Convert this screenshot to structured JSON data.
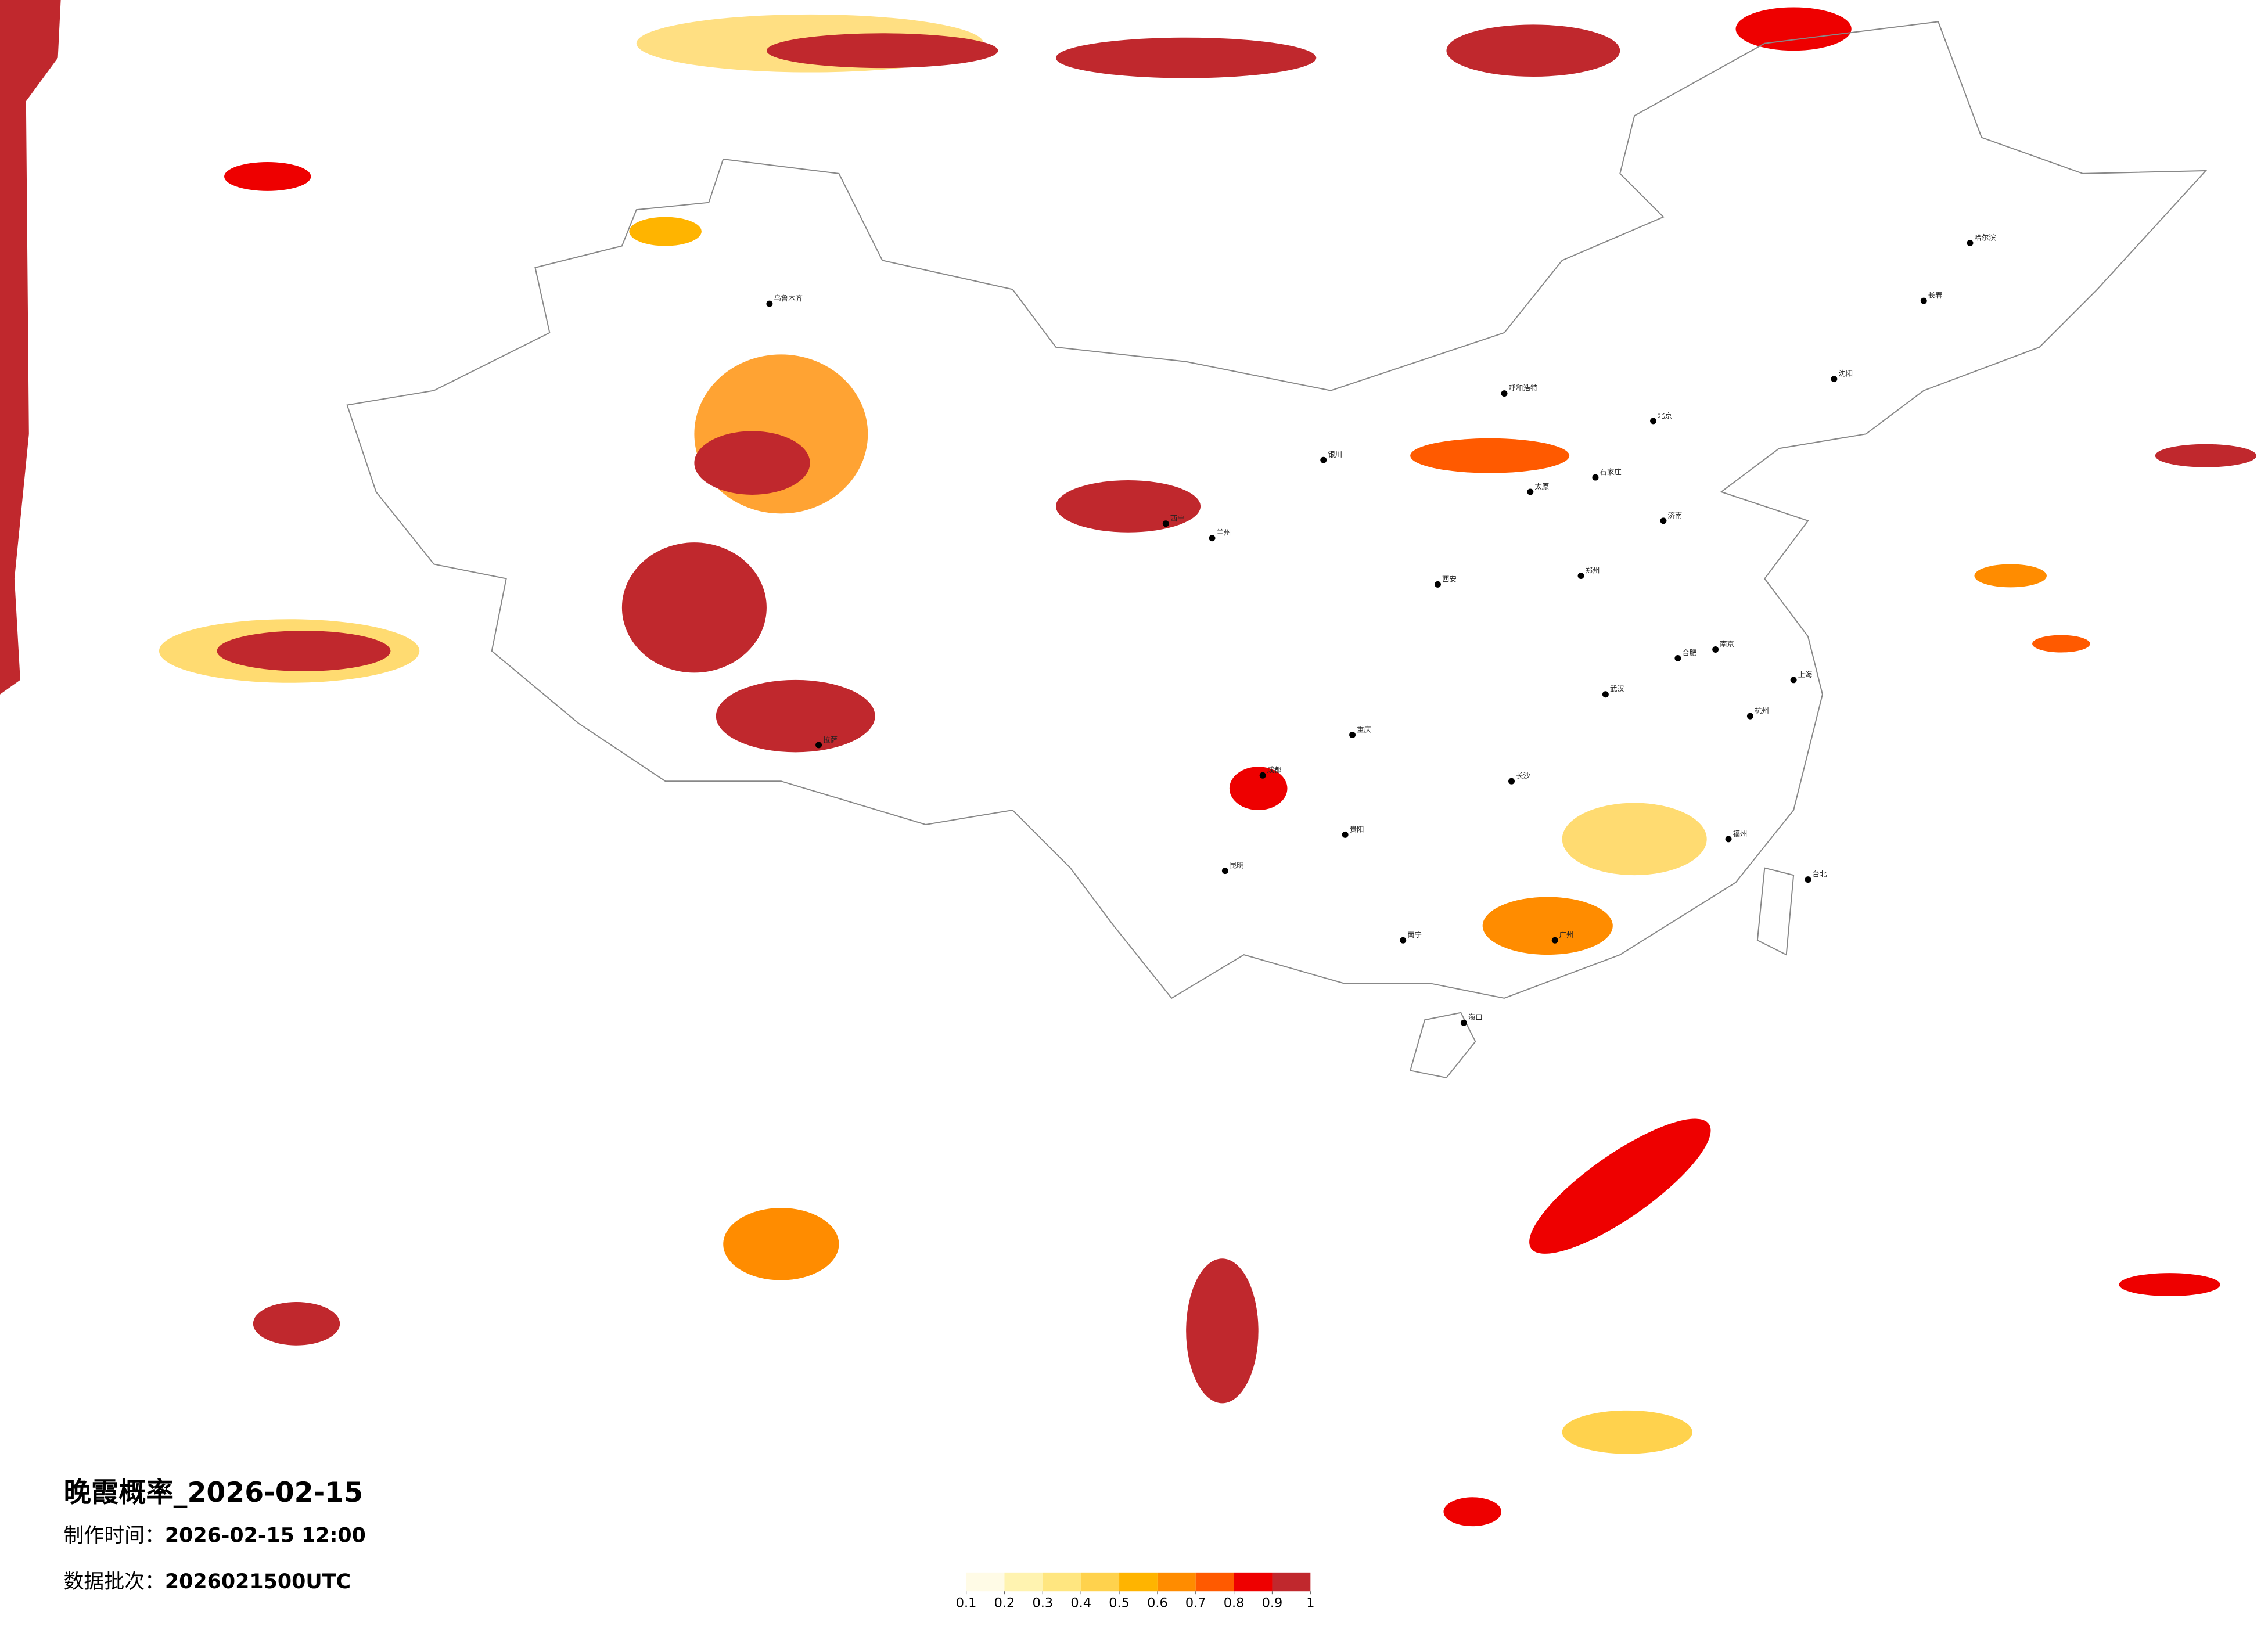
{
  "header": {
    "title": "晚霞概率_2026-02-15",
    "made_label": "制作时间：",
    "made_time": "2026-02-15 12:00",
    "batch_label": "数据批次：",
    "batch": "2026021500UTC"
  },
  "legend": {
    "colors": [
      "#fffbe6",
      "#fff3b0",
      "#ffe680",
      "#ffd24d",
      "#ffb400",
      "#ff8c00",
      "#ff5a00",
      "#ee0000",
      "#c0282d"
    ],
    "ticks": [
      0.1,
      0.2,
      0.3,
      0.4,
      0.5,
      0.6,
      0.7,
      0.8,
      0.9,
      1
    ]
  },
  "cities": [
    "哈尔滨",
    "长春",
    "沈阳",
    "北京",
    "石家庄",
    "太原",
    "郑州",
    "西安",
    "兰州",
    "西宁",
    "乌鲁木齐",
    "拉萨",
    "成都",
    "重庆",
    "昆明",
    "贵阳",
    "南宁",
    "广州",
    "长沙",
    "武汉",
    "南京",
    "上海",
    "杭州",
    "福州",
    "台北",
    "海口",
    "呼和浩特",
    "银川",
    "济南",
    "合肥"
  ]
}
